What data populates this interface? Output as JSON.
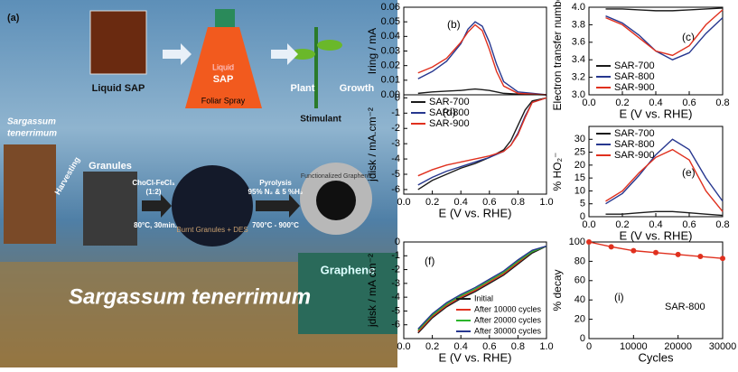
{
  "diagram": {
    "panel": "(a)",
    "liquid_sap": "Liquid SAP",
    "bottle_liquid": "Liquid",
    "bottle_sap": "SAP",
    "foliar": "Foliar Spray",
    "plant": "Plant",
    "growth": "Growth",
    "stimulant": "Stimulant",
    "species_small_1": "Sargassum",
    "species_small_2": "tenerrimum",
    "harvesting": "Harvesting",
    "granules": "Granules",
    "des_1": "ChoCl-FeCl₃",
    "des_2": "(1:2)",
    "des_3": "80°C, 30min.",
    "pyro_1": "Pyrolysis",
    "pyro_2": "95% N₂ & 5 %H₂",
    "pyro_3": "700°C - 900°C",
    "burnt": "Burnt Granules + DES",
    "functional": "Functionalized Graphene",
    "graphene": "Graphene",
    "species": "Sargassum tenerrimum"
  },
  "chart_data": [
    {
      "type": "line",
      "panel_label": "(b)",
      "ylabel": "Iring / mA",
      "x": [
        0.1,
        0.2,
        0.3,
        0.4,
        0.45,
        0.5,
        0.55,
        0.6,
        0.65,
        0.7,
        0.8,
        0.9,
        1.0
      ],
      "xlim": [
        0,
        1
      ],
      "ylim": [
        0,
        0.06
      ],
      "yticks": [
        {
          "value": 0,
          "label": "0.00"
        },
        0.01,
        0.02,
        0.03,
        0.04,
        0.05,
        0.06
      ],
      "series": [
        {
          "name": "SAR-700",
          "color": "#1a1a1a",
          "values": [
            0.001,
            0.002,
            0.0025,
            0.003,
            0.0035,
            0.004,
            0.0035,
            0.003,
            0.002,
            0.001,
            0.0005,
            0.0002,
            0
          ]
        },
        {
          "name": "SAR-800",
          "color": "#27378f",
          "values": [
            0.011,
            0.016,
            0.023,
            0.035,
            0.045,
            0.05,
            0.047,
            0.036,
            0.021,
            0.009,
            0.002,
            0.001,
            0
          ]
        },
        {
          "name": "SAR-900",
          "color": "#e0301e",
          "values": [
            0.015,
            0.019,
            0.025,
            0.036,
            0.043,
            0.048,
            0.044,
            0.031,
            0.016,
            0.006,
            0.001,
            0.0005,
            0
          ]
        }
      ]
    },
    {
      "type": "line",
      "panel_label": "(d)",
      "ylabel": "jdisk / mA.cm⁻²",
      "xlabel": "E (V vs. RHE)",
      "x": [
        0.1,
        0.2,
        0.3,
        0.4,
        0.5,
        0.6,
        0.7,
        0.75,
        0.8,
        0.85,
        0.9,
        1.0
      ],
      "xlim": [
        0,
        1
      ],
      "ylim": [
        -6.3,
        0.2
      ],
      "xticks": [
        {
          "value": 0,
          "label": "0.0"
        },
        0.2,
        0.4,
        0.6,
        0.8,
        {
          "value": 1,
          "label": "1.0"
        }
      ],
      "yticks": [
        -6,
        -5,
        -4,
        -3,
        -2,
        -1,
        0
      ],
      "legend": "upper left",
      "series": [
        {
          "name": "SAR-700",
          "color": "#1a1a1a",
          "values": [
            -6,
            -5.4,
            -5,
            -4.6,
            -4.3,
            -3.9,
            -3.4,
            -2.8,
            -1.8,
            -0.8,
            -0.2,
            0
          ]
        },
        {
          "name": "SAR-800",
          "color": "#27378f",
          "values": [
            -5.7,
            -5.2,
            -4.8,
            -4.5,
            -4.2,
            -3.9,
            -3.5,
            -3.1,
            -2.3,
            -1.2,
            -0.3,
            0
          ]
        },
        {
          "name": "SAR-900",
          "color": "#e0301e",
          "values": [
            -5.1,
            -4.7,
            -4.4,
            -4.2,
            -4,
            -3.8,
            -3.5,
            -3.1,
            -2.4,
            -1.3,
            -0.3,
            0
          ]
        }
      ]
    },
    {
      "type": "line",
      "panel_label": "(c)",
      "ylabel": "Electron transfer number",
      "xlabel": "E (V vs. RHE)",
      "x": [
        0.1,
        0.2,
        0.3,
        0.4,
        0.5,
        0.6,
        0.7,
        0.8
      ],
      "xlim": [
        0,
        0.8
      ],
      "ylim": [
        3,
        4
      ],
      "xticks": [
        {
          "value": 0,
          "label": "0.0"
        },
        0.2,
        0.4,
        0.6,
        0.8
      ],
      "yticks": [
        {
          "value": 3,
          "label": "3.0"
        },
        3.2,
        3.4,
        3.6,
        3.8,
        {
          "value": 4,
          "label": "4.0"
        }
      ],
      "legend": "lower left",
      "series": [
        {
          "name": "SAR-700",
          "color": "#1a1a1a",
          "values": [
            3.98,
            3.98,
            3.97,
            3.96,
            3.96,
            3.97,
            3.98,
            3.99
          ]
        },
        {
          "name": "SAR-800",
          "color": "#27378f",
          "values": [
            3.9,
            3.82,
            3.68,
            3.5,
            3.4,
            3.48,
            3.7,
            3.88
          ]
        },
        {
          "name": "SAR-900",
          "color": "#e0301e",
          "values": [
            3.88,
            3.8,
            3.65,
            3.5,
            3.45,
            3.56,
            3.8,
            3.97
          ]
        }
      ]
    },
    {
      "type": "line",
      "panel_label": "(e)",
      "ylabel": "% HO₂⁻",
      "xlabel": "E (V vs. RHE)",
      "x": [
        0.1,
        0.2,
        0.3,
        0.4,
        0.5,
        0.6,
        0.7,
        0.8
      ],
      "xlim": [
        0,
        0.8
      ],
      "ylim": [
        0,
        35
      ],
      "xticks": [
        {
          "value": 0,
          "label": "0.0"
        },
        0.2,
        0.4,
        0.6,
        0.8
      ],
      "yticks": [
        0,
        5,
        10,
        15,
        20,
        25,
        30
      ],
      "legend": "upper left",
      "series": [
        {
          "name": "SAR-700",
          "color": "#1a1a1a",
          "values": [
            1,
            1,
            1.5,
            2,
            2,
            1.5,
            1,
            0.5
          ]
        },
        {
          "name": "SAR-800",
          "color": "#27378f",
          "values": [
            5,
            9,
            16,
            24,
            30,
            26,
            15,
            6
          ]
        },
        {
          "name": "SAR-900",
          "color": "#e0301e",
          "values": [
            6,
            10,
            17,
            23,
            26,
            22,
            10,
            2
          ]
        }
      ]
    },
    {
      "type": "line",
      "panel_label": "(f)",
      "ylabel": "jdisk / mA cm⁻²",
      "xlabel": "E (V vs. RHE)",
      "x": [
        0.1,
        0.2,
        0.3,
        0.4,
        0.5,
        0.6,
        0.7,
        0.8,
        0.9,
        1.0
      ],
      "xlim": [
        0,
        1
      ],
      "ylim": [
        -7,
        0
      ],
      "xticks": [
        {
          "value": 0,
          "label": "0.0"
        },
        0.2,
        0.4,
        0.6,
        0.8,
        {
          "value": 1,
          "label": "1.0"
        }
      ],
      "yticks": [
        -6,
        -5,
        -4,
        -3,
        -2,
        -1,
        0
      ],
      "legend": "lower right",
      "series": [
        {
          "name": "Initial",
          "color": "#1a1a1a",
          "values": [
            -6.6,
            -5.5,
            -4.7,
            -4.1,
            -3.6,
            -3.0,
            -2.4,
            -1.6,
            -0.8,
            -0.3
          ]
        },
        {
          "name": "After 10000 cycles",
          "color": "#e0301e",
          "values": [
            -6.5,
            -5.4,
            -4.6,
            -4.0,
            -3.5,
            -2.9,
            -2.3,
            -1.5,
            -0.7,
            -0.3
          ]
        },
        {
          "name": "After 20000 cycles",
          "color": "#2bb52b",
          "values": [
            -6.4,
            -5.3,
            -4.5,
            -3.9,
            -3.4,
            -2.8,
            -2.2,
            -1.4,
            -0.7,
            -0.3
          ]
        },
        {
          "name": "After 30000 cycles",
          "color": "#27378f",
          "values": [
            -6.3,
            -5.2,
            -4.4,
            -3.8,
            -3.3,
            -2.7,
            -2.1,
            -1.3,
            -0.6,
            -0.3
          ]
        }
      ]
    },
    {
      "type": "line",
      "panel_label": "(i)",
      "ylabel": "% decay",
      "xlabel": "Cycles",
      "annotation": "SAR-800",
      "markers": true,
      "x": [
        0,
        5000,
        10000,
        15000,
        20000,
        25000,
        30000
      ],
      "xlim": [
        0,
        30000
      ],
      "ylim": [
        0,
        100
      ],
      "xticks": [
        0,
        10000,
        20000,
        30000
      ],
      "yticks": [
        0,
        20,
        40,
        60,
        80,
        100
      ],
      "series": [
        {
          "name": "SAR-800",
          "color": "#e0301e",
          "values": [
            100,
            95,
            91,
            89,
            87,
            85,
            83
          ]
        }
      ]
    }
  ]
}
